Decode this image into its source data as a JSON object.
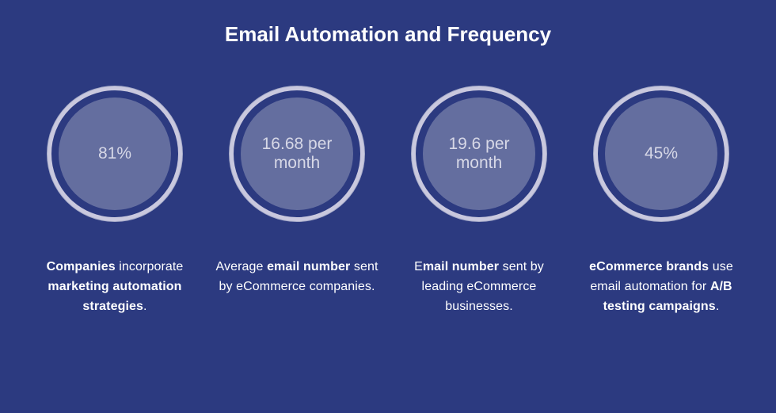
{
  "title": "Email Automation and Frequency",
  "background_color": "#2c3a80",
  "title_color": "#ffffff",
  "title_fontsize": 26,
  "circle": {
    "outer_diameter": 170,
    "inner_diameter": 142,
    "ring_width": 5,
    "ring_color": "#c9c8de",
    "fill_color": "#646e9f",
    "outer_border_color": "#a6abc9",
    "value_color": "#d7d8e7",
    "value_fontsize": 21
  },
  "caption": {
    "color": "#ffffff",
    "fontsize": 16,
    "margin_top": 46
  },
  "stats": [
    {
      "value": "81%",
      "caption_html": "<b>Companies</b> incorporate <b>marketing automation strategies</b>."
    },
    {
      "value": "16.68 per month",
      "caption_html": "Average <b>email number</b> sent by eCommerce companies."
    },
    {
      "value": "19.6 per month",
      "caption_html": "E<b>mail number</b> sent by leading eCommerce businesses."
    },
    {
      "value": "45%",
      "caption_html": "<b>eCommerce brands</b> use email automation for <b>A/B testing campaigns</b>."
    }
  ]
}
